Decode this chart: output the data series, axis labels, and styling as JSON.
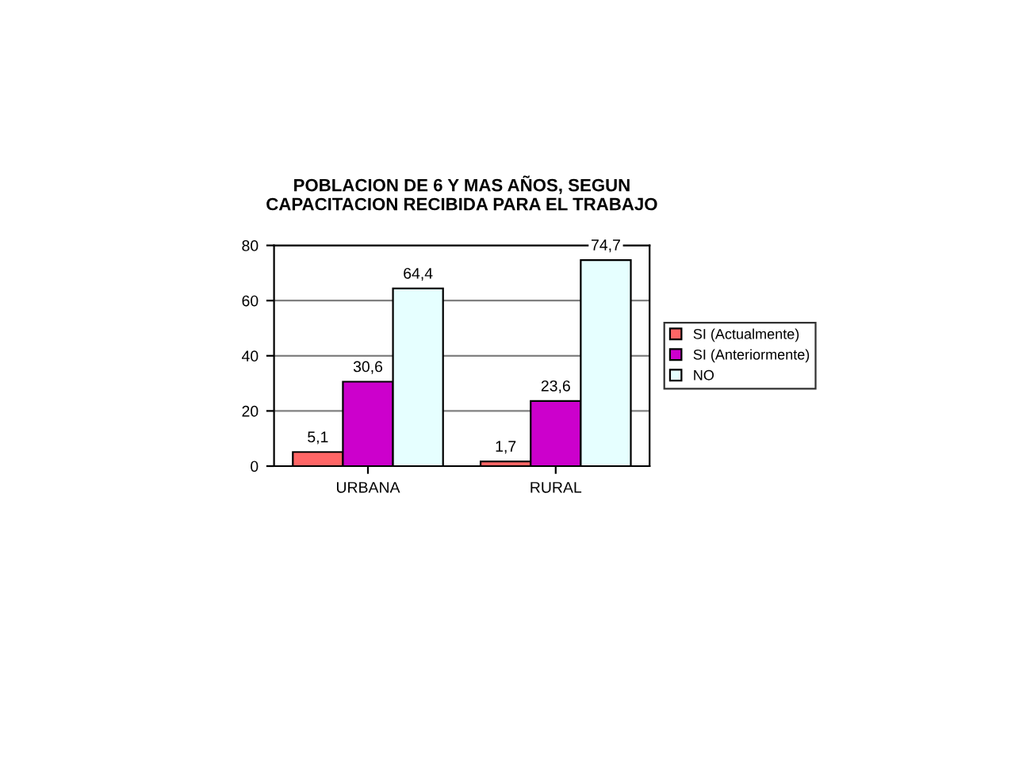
{
  "chart_data": {
    "type": "bar",
    "title": "POBLACION DE 6 Y MAS AÑOS, SEGUN\nCAPACITACION RECIBIDA PARA EL TRABAJO",
    "categories": [
      "URBANA",
      "RURAL"
    ],
    "series": [
      {
        "name": "SI (Actualmente)",
        "color": "#ff6666",
        "values": [
          5.1,
          1.7
        ],
        "value_labels": [
          "5,1",
          "1,7"
        ]
      },
      {
        "name": "SI (Anteriormente)",
        "color": "#cc00cc",
        "values": [
          30.6,
          23.6
        ],
        "value_labels": [
          "30,6",
          "23,6"
        ]
      },
      {
        "name": "NO",
        "color": "#e6ffff",
        "values": [
          64.4,
          74.7
        ],
        "value_labels": [
          "64,4",
          "74,7"
        ]
      }
    ],
    "ylim": [
      0,
      80
    ],
    "yticks": [
      0,
      20,
      40,
      60,
      80
    ],
    "grid": "y",
    "legend": "right"
  }
}
